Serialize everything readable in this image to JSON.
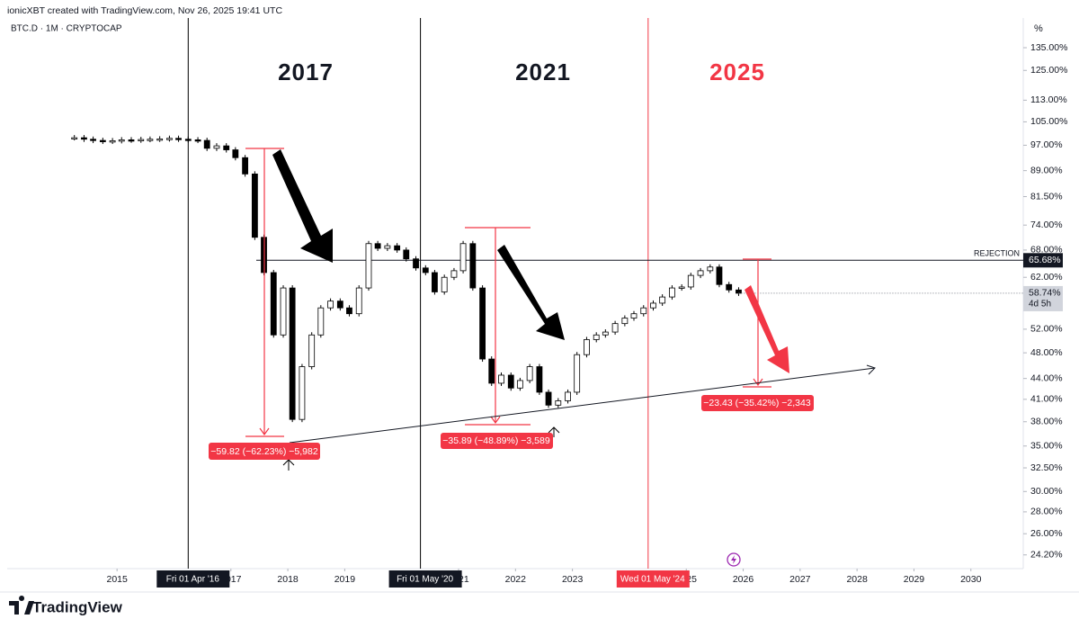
{
  "page": {
    "byline": "ionicXBT created with TradingView.com, Nov 26, 2025 19:41 UTC",
    "symbol": "BTC.D · 1M · CRYPTOCAP",
    "brand": "TradingView"
  },
  "chart_data": {
    "type": "candlestick",
    "log_scale": true,
    "y_unit": "%",
    "color_up": "#ffffff",
    "color_down": "#000000",
    "x": [
      2014.25,
      2014.42,
      2014.58,
      2014.75,
      2014.92,
      2015.08,
      2015.25,
      2015.42,
      2015.58,
      2015.75,
      2015.92,
      2016.08,
      2016.25,
      2016.42,
      2016.58,
      2016.75,
      2016.92,
      2017.08,
      2017.25,
      2017.42,
      2017.58,
      2017.75,
      2017.92,
      2018.08,
      2018.25,
      2018.42,
      2018.58,
      2018.75,
      2018.92,
      2019.08,
      2019.25,
      2019.42,
      2019.58,
      2019.75,
      2019.92,
      2020.08,
      2020.25,
      2020.42,
      2020.58,
      2020.75,
      2020.92,
      2021.08,
      2021.25,
      2021.42,
      2021.58,
      2021.75,
      2021.92,
      2022.08,
      2022.25,
      2022.42,
      2022.58,
      2022.75,
      2022.92,
      2023.08,
      2023.25,
      2023.42,
      2023.58,
      2023.75,
      2023.92,
      2024.08,
      2024.25,
      2024.42,
      2024.58,
      2024.75,
      2024.92,
      2025.08,
      2025.25,
      2025.42,
      2025.58,
      2025.75,
      2025.92
    ],
    "values": [
      99.5,
      99.0,
      98.6,
      98.3,
      98.5,
      98.8,
      98.7,
      98.9,
      99.0,
      99.1,
      99.3,
      99.0,
      98.8,
      98.6,
      96.0,
      96.8,
      95.5,
      93.0,
      88.0,
      71.0,
      63.0,
      51.0,
      59.8,
      38.3,
      45.8,
      51.0,
      55.9,
      57.2,
      55.9,
      54.8,
      59.8,
      69.5,
      68.4,
      69.0,
      68.0,
      66.0,
      64.0,
      63.0,
      59.0,
      62.0,
      63.4,
      69.5,
      59.8,
      47.0,
      43.3,
      44.5,
      42.6,
      43.7,
      45.8,
      42.0,
      40.2,
      40.8,
      42.0,
      47.7,
      50.2,
      51.0,
      51.5,
      53.0,
      54.0,
      54.8,
      55.9,
      56.8,
      58.0,
      59.8,
      60.0,
      62.4,
      63.4,
      64.2,
      60.5,
      59.4,
      58.74
    ],
    "xlim": [
      2013.07,
      2030.92
    ],
    "xticks": [
      2015,
      2017,
      2018,
      2019,
      2021,
      2022,
      2023,
      2025,
      2026,
      2027,
      2028,
      2029,
      2030
    ],
    "ylim": [
      23.1,
      149.3
    ],
    "yticks": [
      {
        "value": 135,
        "label": "135.00%"
      },
      {
        "value": 125,
        "label": "125.00%"
      },
      {
        "value": 113,
        "label": "113.00%"
      },
      {
        "value": 105,
        "label": "105.00%"
      },
      {
        "value": 97,
        "label": "97.00%"
      },
      {
        "value": 89,
        "label": "89.00%"
      },
      {
        "value": 81.5,
        "label": "81.50%"
      },
      {
        "value": 74,
        "label": "74.00%"
      },
      {
        "value": 68,
        "label": "68.00%"
      },
      {
        "value": 62,
        "label": "62.00%"
      },
      {
        "value": 52,
        "label": "52.00%"
      },
      {
        "value": 48,
        "label": "48.00%"
      },
      {
        "value": 44,
        "label": "44.00%"
      },
      {
        "value": 41,
        "label": "41.00%"
      },
      {
        "value": 38,
        "label": "38.00%"
      },
      {
        "value": 35,
        "label": "35.00%"
      },
      {
        "value": 32.5,
        "label": "32.50%"
      },
      {
        "value": 30,
        "label": "30.00%"
      },
      {
        "value": 28,
        "label": "28.00%"
      },
      {
        "value": 26,
        "label": "26.00%"
      },
      {
        "value": 24.2,
        "label": "24.20%"
      }
    ],
    "vlines": [
      {
        "value": 2016.25,
        "label": "Fri 01 Apr '16",
        "color": "#000000"
      },
      {
        "value": 2020.33,
        "label": "Fri 01 May '20",
        "color": "#000000"
      },
      {
        "value": 2024.33,
        "label": "Wed 01 May '24",
        "color": "#f23645"
      }
    ],
    "cycle_labels": [
      "2017",
      "2021",
      "2025"
    ],
    "measures": [
      "−59.82 (−62.23%) −5,982",
      "−35.89 (−48.89%) −3,589",
      "−23.43 (−35.42%) −2,343"
    ],
    "rejection": {
      "label": "REJECTION",
      "value": 65.68,
      "value_label": "65.68%"
    },
    "last_price": {
      "value": 58.74,
      "label": "58.74%",
      "countdown": "4d 5h"
    }
  }
}
